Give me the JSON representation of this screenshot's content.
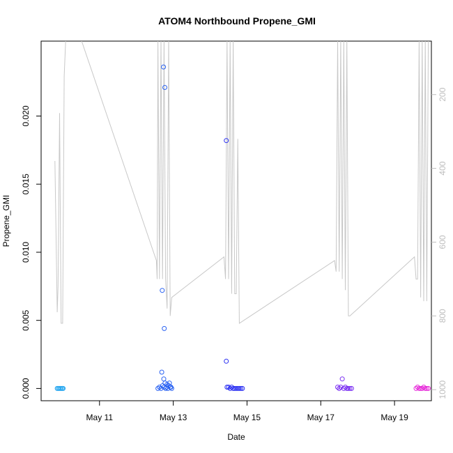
{
  "chart_data": {
    "type": "scatter",
    "title": "ATOM4 Northbound Propene_GMI",
    "xlabel": "Date",
    "ylabel": "Propene_GMI",
    "x_ticks": [
      "May 11",
      "May 13",
      "May 15",
      "May 17",
      "May 19"
    ],
    "xlim": [
      "2017-05-09T10:00",
      "2017-05-20T00:00"
    ],
    "ylim": [
      -0.0009,
      0.0255
    ],
    "y_ticks": [
      "0.000",
      "0.005",
      "0.010",
      "0.015",
      "0.020"
    ],
    "y_tick_values": [
      0,
      0.005,
      0.01,
      0.015,
      0.02
    ],
    "right_axis": {
      "label": "",
      "reversed": true,
      "ticks": [
        "200",
        "400",
        "600",
        "800",
        "1000"
      ],
      "tick_values": [
        200,
        400,
        600,
        800,
        1000
      ],
      "range": [
        1030,
        55
      ],
      "color": "#bdbdbd"
    },
    "grid": false,
    "legend": "none",
    "series": [
      {
        "color": "#29a8f0",
        "points": [
          [
            "2017-05-09T20:30",
            0
          ],
          [
            "2017-05-09T21:10",
            0
          ],
          [
            "2017-05-09T21:50",
            0
          ],
          [
            "2017-05-09T22:30",
            0
          ],
          [
            "2017-05-09T23:10",
            0
          ],
          [
            "2017-05-09T23:50",
            0
          ],
          [
            "2017-05-10T00:20",
            0
          ]
        ]
      },
      {
        "color": "#2a62f2",
        "points": [
          [
            "2017-05-12T14:00",
            0
          ],
          [
            "2017-05-12T15:00",
            0.0001
          ],
          [
            "2017-05-12T16:00",
            0
          ],
          [
            "2017-05-12T17:00",
            0.0002
          ],
          [
            "2017-05-12T18:00",
            0.0001
          ],
          [
            "2017-05-12T19:00",
            0
          ],
          [
            "2017-05-12T20:00",
            0.0003
          ],
          [
            "2017-05-12T21:00",
            0.0002
          ],
          [
            "2017-05-12T22:00",
            0.0001
          ],
          [
            "2017-05-12T23:00",
            0
          ],
          [
            "2017-05-12T16:30",
            0.0012
          ],
          [
            "2017-05-12T17:40",
            0.0236
          ],
          [
            "2017-05-12T18:30",
            0.0221
          ],
          [
            "2017-05-12T16:50",
            0.0072
          ],
          [
            "2017-05-12T18:10",
            0.0044
          ],
          [
            "2017-05-12T17:50",
            0.0007
          ],
          [
            "2017-05-12T18:40",
            0.0004
          ],
          [
            "2017-05-12T19:30",
            0.0001
          ],
          [
            "2017-05-12T20:30",
            0
          ],
          [
            "2017-05-12T21:30",
            0.0004
          ],
          [
            "2017-05-12T22:30",
            0.0001
          ]
        ]
      },
      {
        "color": "#2a2ff2",
        "points": [
          [
            "2017-05-14T10:30",
            0.0182
          ],
          [
            "2017-05-14T10:30",
            0.002
          ],
          [
            "2017-05-14T11:00",
            0.0001
          ],
          [
            "2017-05-14T12:00",
            0.0001
          ],
          [
            "2017-05-14T13:00",
            0
          ],
          [
            "2017-05-14T14:00",
            0.0001
          ],
          [
            "2017-05-14T15:00",
            0
          ],
          [
            "2017-05-14T16:00",
            0
          ],
          [
            "2017-05-14T17:00",
            0
          ],
          [
            "2017-05-14T18:00",
            0
          ],
          [
            "2017-05-14T19:00",
            0
          ],
          [
            "2017-05-14T20:00",
            0
          ],
          [
            "2017-05-14T21:00",
            0
          ]
        ]
      },
      {
        "color": "#7a2ff2",
        "points": [
          [
            "2017-05-17T11:00",
            0.0001
          ],
          [
            "2017-05-17T12:00",
            0
          ],
          [
            "2017-05-17T13:00",
            0.0001
          ],
          [
            "2017-05-17T14:00",
            0.0007
          ],
          [
            "2017-05-17T15:00",
            0
          ],
          [
            "2017-05-17T16:00",
            0.0001
          ],
          [
            "2017-05-17T17:00",
            0
          ],
          [
            "2017-05-17T18:00",
            0
          ],
          [
            "2017-05-17T19:00",
            0
          ],
          [
            "2017-05-17T20:00",
            0
          ]
        ]
      },
      {
        "color": "#e62ad9",
        "points": [
          [
            "2017-05-19T14:00",
            0
          ],
          [
            "2017-05-19T15:00",
            0.0001
          ],
          [
            "2017-05-19T16:00",
            0
          ],
          [
            "2017-05-19T17:00",
            0
          ],
          [
            "2017-05-19T18:00",
            0
          ],
          [
            "2017-05-19T19:00",
            0.0001
          ],
          [
            "2017-05-19T20:00",
            0
          ],
          [
            "2017-05-19T21:00",
            0
          ],
          [
            "2017-05-19T22:00",
            0
          ]
        ]
      }
    ],
    "overlay_line": {
      "color": "#c8c8c8",
      "axis": "right",
      "points": [
        [
          "2017-05-09T19:00",
          380
        ],
        [
          "2017-05-09T20:30",
          790
        ],
        [
          "2017-05-09T21:00",
          720
        ],
        [
          "2017-05-09T22:00",
          250
        ],
        [
          "2017-05-09T23:00",
          820
        ],
        [
          "2017-05-10T00:00",
          820
        ],
        [
          "2017-05-10T01:00",
          150
        ],
        [
          "2017-05-10T02:00",
          50
        ],
        [
          "2017-05-10T12:00",
          50
        ],
        [
          "2017-05-12T13:00",
          650
        ],
        [
          "2017-05-12T13:30",
          700
        ],
        [
          "2017-05-12T14:00",
          50
        ],
        [
          "2017-05-12T15:00",
          700
        ],
        [
          "2017-05-12T16:00",
          50
        ],
        [
          "2017-05-12T17:00",
          700
        ],
        [
          "2017-05-12T18:00",
          50
        ],
        [
          "2017-05-12T19:00",
          700
        ],
        [
          "2017-05-12T20:00",
          780
        ],
        [
          "2017-05-12T21:00",
          50
        ],
        [
          "2017-05-12T22:00",
          800
        ],
        [
          "2017-05-12T23:00",
          750
        ],
        [
          "2017-05-14T09:00",
          640
        ],
        [
          "2017-05-14T10:00",
          700
        ],
        [
          "2017-05-14T11:00",
          50
        ],
        [
          "2017-05-14T12:00",
          700
        ],
        [
          "2017-05-14T13:00",
          50
        ],
        [
          "2017-05-14T14:00",
          740
        ],
        [
          "2017-05-14T15:00",
          50
        ],
        [
          "2017-05-14T16:00",
          740
        ],
        [
          "2017-05-14T17:00",
          740
        ],
        [
          "2017-05-14T18:00",
          320
        ],
        [
          "2017-05-14T19:00",
          820
        ],
        [
          "2017-05-17T09:00",
          650
        ],
        [
          "2017-05-17T10:00",
          680
        ],
        [
          "2017-05-17T11:00",
          50
        ],
        [
          "2017-05-17T12:00",
          680
        ],
        [
          "2017-05-17T13:00",
          50
        ],
        [
          "2017-05-17T14:00",
          700
        ],
        [
          "2017-05-17T15:00",
          50
        ],
        [
          "2017-05-17T16:00",
          730
        ],
        [
          "2017-05-17T17:00",
          50
        ],
        [
          "2017-05-17T18:00",
          800
        ],
        [
          "2017-05-17T19:00",
          800
        ],
        [
          "2017-05-19T13:00",
          640
        ],
        [
          "2017-05-19T14:00",
          700
        ],
        [
          "2017-05-19T15:00",
          700
        ],
        [
          "2017-05-19T16:00",
          50
        ],
        [
          "2017-05-19T17:00",
          750
        ],
        [
          "2017-05-19T18:00",
          50
        ],
        [
          "2017-05-19T19:00",
          760
        ],
        [
          "2017-05-19T20:00",
          50
        ],
        [
          "2017-05-19T21:00",
          760
        ],
        [
          "2017-05-19T22:00",
          50
        ]
      ]
    }
  }
}
